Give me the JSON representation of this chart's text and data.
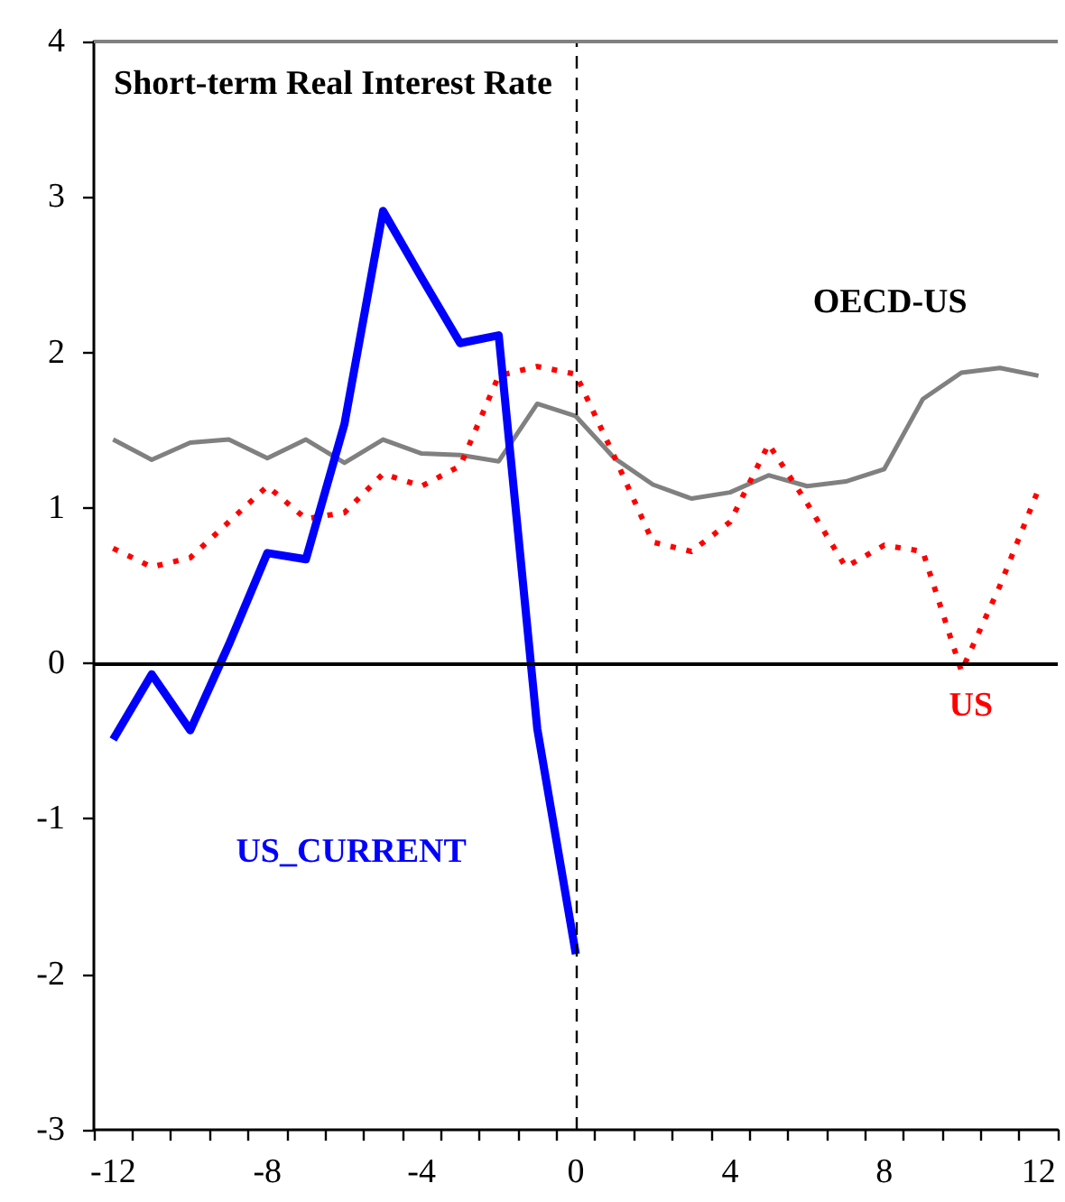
{
  "chart_data": {
    "type": "line",
    "title": "Short-term Real Interest Rate",
    "x": [
      -12,
      -11,
      -10,
      -9,
      -8,
      -7,
      -6,
      -5,
      -4,
      -3,
      -2,
      -1,
      0,
      1,
      2,
      3,
      4,
      5,
      6,
      7,
      8,
      9,
      10,
      11,
      12
    ],
    "xlim": [
      -12.5,
      12.5
    ],
    "xticks": [
      {
        "value": -12.5,
        "label": null
      },
      -12,
      {
        "value": -11.5,
        "label": null
      },
      {
        "value": -10.5,
        "label": null
      },
      {
        "value": -9.5,
        "label": null
      },
      {
        "value": -8.5,
        "label": null
      },
      -8,
      {
        "value": -7.5,
        "label": null
      },
      {
        "value": -6.5,
        "label": null
      },
      {
        "value": -5.5,
        "label": null
      },
      {
        "value": -4.5,
        "label": null
      },
      -4,
      {
        "value": -3.5,
        "label": null
      },
      {
        "value": -2.5,
        "label": null
      },
      {
        "value": -1.5,
        "label": null
      },
      {
        "value": -0.5,
        "label": null
      },
      0,
      {
        "value": 0.5,
        "label": null
      },
      {
        "value": 1.5,
        "label": null
      },
      {
        "value": 2.5,
        "label": null
      },
      {
        "value": 3.5,
        "label": null
      },
      4,
      {
        "value": 4.5,
        "label": null
      },
      {
        "value": 5.5,
        "label": null
      },
      {
        "value": 6.5,
        "label": null
      },
      {
        "value": 7.5,
        "label": null
      },
      8,
      {
        "value": 8.5,
        "label": null
      },
      {
        "value": 9.5,
        "label": null
      },
      {
        "value": 10.5,
        "label": null
      },
      {
        "value": 11.5,
        "label": null
      },
      12,
      {
        "value": 12.5,
        "label": null
      }
    ],
    "ylim": [
      -3,
      4
    ],
    "yticks": [
      -3,
      -2,
      -1,
      0,
      1,
      2,
      3,
      4
    ],
    "series": [
      {
        "name": "OECD-US",
        "color": "#808080",
        "line_style": "solid",
        "values": [
          1.44,
          1.31,
          1.42,
          1.44,
          1.32,
          1.44,
          1.29,
          1.44,
          1.35,
          1.34,
          1.3,
          1.67,
          1.59,
          1.32,
          1.15,
          1.06,
          1.1,
          1.21,
          1.14,
          1.17,
          1.25,
          1.7,
          1.87,
          1.9,
          1.85
        ]
      },
      {
        "name": "US",
        "color": "#ff0000",
        "line_style": "dotted",
        "values": [
          0.74,
          0.62,
          0.68,
          0.91,
          1.14,
          0.93,
          0.97,
          1.22,
          1.14,
          1.27,
          1.85,
          1.91,
          1.86,
          1.33,
          0.78,
          0.72,
          0.91,
          1.41,
          1.03,
          0.62,
          0.76,
          0.72,
          -0.05,
          0.5,
          1.12
        ]
      },
      {
        "name": "US_CURRENT",
        "color": "#0000ff",
        "line_style": "solid",
        "values": [
          -0.49,
          -0.07,
          -0.43,
          0.12,
          0.71,
          0.67,
          1.54,
          2.91,
          2.48,
          2.06,
          2.11,
          -0.42,
          -1.87,
          null,
          null,
          null,
          null,
          null,
          null,
          null,
          null,
          null,
          null,
          null,
          null
        ]
      }
    ],
    "ref_lines": [
      {
        "axis": "x",
        "value": 0,
        "color": "#000000",
        "line_style": "dashed"
      },
      {
        "axis": "y",
        "value": 0,
        "color": "#000000",
        "line_style": "solid"
      },
      {
        "axis": "y",
        "value": 4,
        "color": "#808080",
        "line_style": "solid"
      }
    ]
  }
}
